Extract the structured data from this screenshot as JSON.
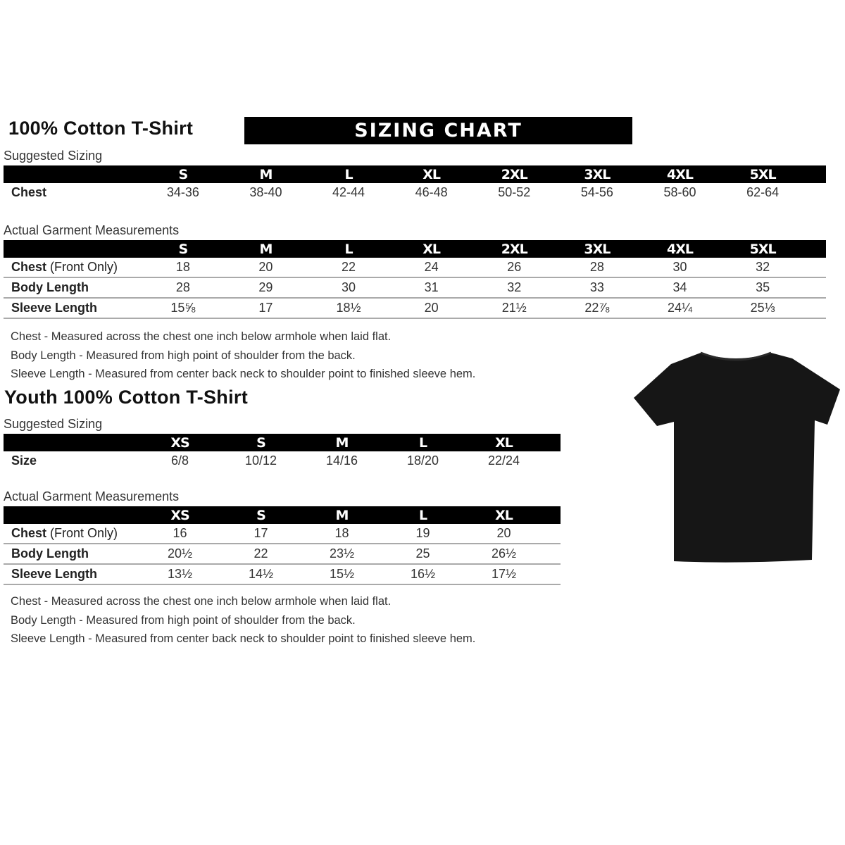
{
  "adult": {
    "title": "100% Cotton T-Shirt",
    "banner": "SIZING CHART",
    "suggested_label": "Suggested Sizing",
    "sizes": [
      "S",
      "M",
      "L",
      "XL",
      "2XL",
      "3XL",
      "4XL",
      "5XL"
    ],
    "suggested_rows": [
      {
        "label": "Chest",
        "values": [
          "34-36",
          "38-40",
          "42-44",
          "46-48",
          "50-52",
          "54-56",
          "58-60",
          "62-64"
        ]
      }
    ],
    "actual_label": "Actual Garment Measurements",
    "actual_rows": [
      {
        "label": "Chest",
        "label_suffix": "(Front Only)",
        "values": [
          "18",
          "20",
          "22",
          "24",
          "26",
          "28",
          "30",
          "32"
        ]
      },
      {
        "label": "Body Length",
        "label_suffix": "",
        "values": [
          "28",
          "29",
          "30",
          "31",
          "32",
          "33",
          "34",
          "35"
        ]
      },
      {
        "label": "Sleeve Length",
        "label_suffix": "",
        "values": [
          "15⅝",
          "17",
          "18½",
          "20",
          "21½",
          "22⅞",
          "24¼",
          "25⅓"
        ]
      }
    ],
    "notes": [
      "Chest - Measured across the chest one inch below armhole when laid flat.",
      "Body Length - Measured from high point of shoulder from the back.",
      "Sleeve Length - Measured from center back neck to shoulder point to finished sleeve hem."
    ]
  },
  "youth": {
    "title": "Youth 100% Cotton T-Shirt",
    "suggested_label": "Suggested Sizing",
    "sizes": [
      "XS",
      "S",
      "M",
      "L",
      "XL"
    ],
    "suggested_rows": [
      {
        "label": "Size",
        "values": [
          "6/8",
          "10/12",
          "14/16",
          "18/20",
          "22/24"
        ]
      }
    ],
    "actual_label": "Actual Garment Measurements",
    "actual_rows": [
      {
        "label": "Chest",
        "label_suffix": "(Front Only)",
        "values": [
          "16",
          "17",
          "18",
          "19",
          "20"
        ]
      },
      {
        "label": "Body Length",
        "label_suffix": "",
        "values": [
          "20½",
          "22",
          "23½",
          "25",
          "26½"
        ]
      },
      {
        "label": "Sleeve Length",
        "label_suffix": "",
        "values": [
          "13½",
          "14½",
          "15½",
          "16½",
          "17½"
        ]
      }
    ],
    "notes": [
      "Chest - Measured across the chest one inch below armhole when laid flat.",
      "Body Length - Measured from high point of shoulder from the back.",
      "Sleeve Length - Measured from center back neck to shoulder point to finished sleeve hem."
    ]
  },
  "image": {
    "icon": "black-tshirt-icon",
    "color": "#161616"
  }
}
